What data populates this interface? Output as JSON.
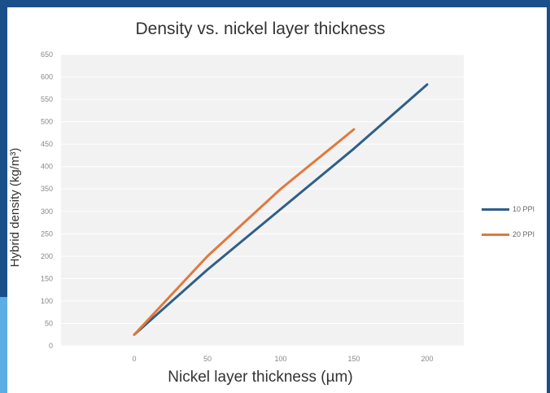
{
  "chart_data": {
    "type": "line",
    "title": "Density vs. nickel layer thickness",
    "xlabel": "Nickel layer thickness (µm)",
    "ylabel": "Hybrid density (kg/m³)",
    "xlim": [
      -50,
      225
    ],
    "ylim": [
      0,
      650
    ],
    "x_ticks": [
      "0",
      "50",
      "100",
      "150",
      "200"
    ],
    "y_ticks": [
      "0",
      "50",
      "100",
      "150",
      "200",
      "250",
      "300",
      "350",
      "400",
      "450",
      "500",
      "550",
      "600",
      "650"
    ],
    "grid": true,
    "legend_position": "right",
    "series": [
      {
        "name": "10 PPI",
        "color": "#2e5f8a",
        "x": [
          0,
          50,
          100,
          150,
          200
        ],
        "y": [
          25,
          170,
          305,
          440,
          583
        ]
      },
      {
        "name": "20 PPI",
        "color": "#e2783b",
        "x": [
          0,
          50,
          100,
          150
        ],
        "y": [
          25,
          200,
          350,
          483
        ]
      }
    ]
  }
}
